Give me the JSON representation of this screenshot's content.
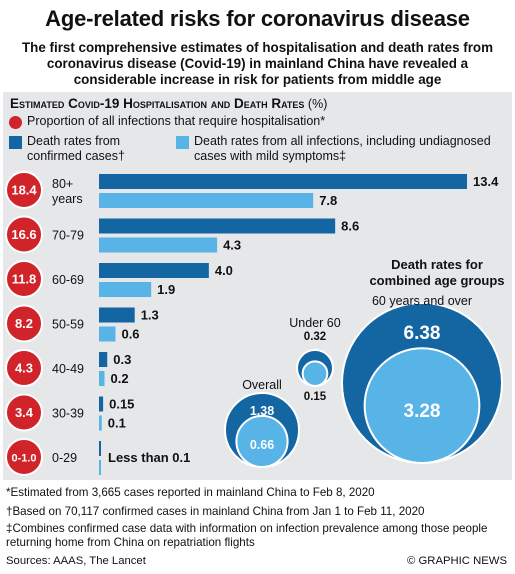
{
  "title": "Age-related risks for coronavirus disease",
  "subtitle": "The first comprehensive estimates of hospitalisation and death rates from coronavirus disease (Covid-19) in mainland China have revealed a considerable increase in risk for patients from middle age",
  "chart_heading": "Estimated Covid-19 Hospitalisation and Death Rates",
  "chart_unit": "(%)",
  "legend": {
    "hosp": "Proportion of all infections that require hospitalisation*",
    "confirmed": "Death rates from confirmed cases†",
    "all": "Death rates from all infections, including undiagnosed cases with mild symptoms‡"
  },
  "colors": {
    "dark": "#1466a3",
    "light": "#58b4e6",
    "red": "#d0232a",
    "panel": "#e6e7e9"
  },
  "chart_data": {
    "type": "bar",
    "orientation": "horizontal",
    "categories": [
      "80+ years",
      "70-79",
      "60-69",
      "50-59",
      "40-49",
      "30-39",
      "0-29"
    ],
    "hospitalisation": [
      "18.4",
      "16.6",
      "11.8",
      "8.2",
      "4.3",
      "3.4",
      "0-1.0"
    ],
    "series": [
      {
        "name": "Death rates from confirmed cases†",
        "values": [
          13.4,
          8.6,
          4.0,
          1.3,
          0.3,
          0.15,
          0.0
        ]
      },
      {
        "name": "Death rates from all infections, including undiagnosed cases with mild symptoms‡",
        "values": [
          7.8,
          4.3,
          1.9,
          0.6,
          0.2,
          0.1,
          0.0
        ]
      }
    ],
    "value_labels": {
      "confirmed": [
        "13.4",
        "8.6",
        "4.0",
        "1.3",
        "0.3",
        "0.15",
        ""
      ],
      "all": [
        "7.8",
        "4.3",
        "1.9",
        "0.6",
        "0.2",
        "0.1",
        ""
      ]
    },
    "youngest_note": "Less than 0.1",
    "xlim": [
      0,
      13.4
    ]
  },
  "combined": {
    "title": "Death rates for combined age groups",
    "groups": [
      {
        "label": "60 years and over",
        "confirmed": 6.38,
        "all": 3.28,
        "confirmed_label": "6.38",
        "all_label": "3.28"
      },
      {
        "label": "Under 60",
        "confirmed": 0.32,
        "all": 0.15,
        "confirmed_label": "0.32",
        "all_label": "0.15"
      },
      {
        "label": "Overall",
        "confirmed": 1.38,
        "all": 0.66,
        "confirmed_label": "1.38",
        "all_label": "0.66"
      }
    ]
  },
  "footnotes": {
    "hosp": "*Estimated from 3,665 cases reported in mainland China to Feb 8, 2020",
    "confirmed": "†Based on 70,117 confirmed cases in mainland China from Jan 1 to Feb 11, 2020",
    "all": "‡Combines confirmed case data with information on infection prevalence among those people returning home from China on repatriation flights"
  },
  "sources": "Sources: AAAS, The Lancet",
  "credit": "© GRAPHIC NEWS"
}
